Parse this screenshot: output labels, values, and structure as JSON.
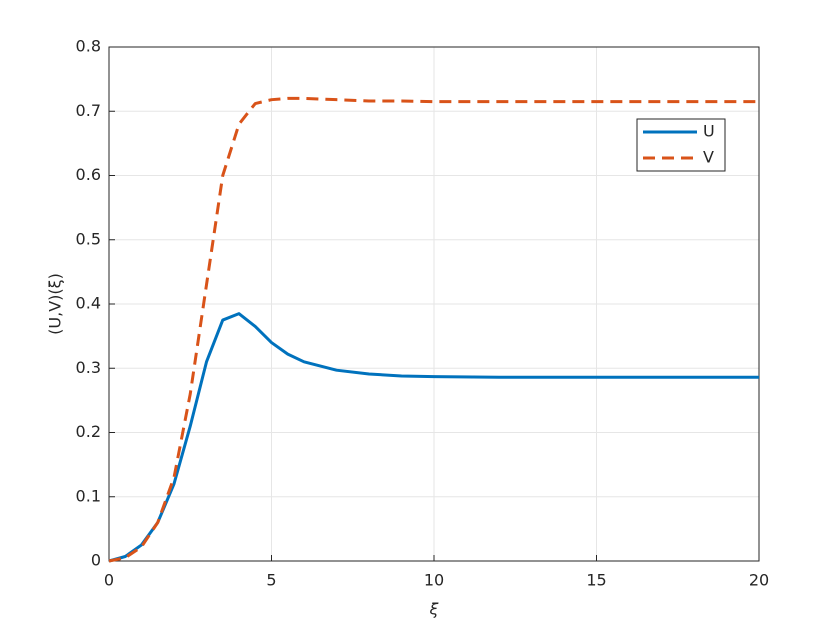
{
  "chart_data": {
    "type": "line",
    "xlabel": "ξ",
    "ylabel": "(U,V)(ξ)",
    "x": [
      0,
      0.5,
      1,
      1.5,
      2,
      2.5,
      3,
      3.5,
      4,
      4.5,
      5,
      5.5,
      6,
      7,
      8,
      9,
      10,
      12,
      14,
      16,
      18,
      20
    ],
    "series": [
      {
        "name": "U",
        "color": "#0072bd",
        "line_style": "solid",
        "values": [
          0,
          0.007,
          0.025,
          0.06,
          0.12,
          0.21,
          0.31,
          0.375,
          0.385,
          0.365,
          0.34,
          0.322,
          0.31,
          0.297,
          0.291,
          0.288,
          0.287,
          0.286,
          0.286,
          0.286,
          0.286,
          0.286
        ]
      },
      {
        "name": "V",
        "color": "#d95319",
        "line_style": "dashed",
        "values": [
          0,
          0.005,
          0.022,
          0.06,
          0.13,
          0.26,
          0.43,
          0.6,
          0.68,
          0.712,
          0.718,
          0.72,
          0.72,
          0.718,
          0.716,
          0.716,
          0.715,
          0.715,
          0.715,
          0.715,
          0.715,
          0.715
        ]
      }
    ],
    "xlim": [
      0,
      20
    ],
    "xticks": [
      0,
      5,
      10,
      15,
      20
    ],
    "ylim": [
      0,
      0.8
    ],
    "yticks": [
      0,
      0.1,
      0.2,
      0.3,
      0.4,
      0.5,
      0.6,
      0.7,
      0.8
    ],
    "grid": true,
    "legend": "northeast"
  }
}
